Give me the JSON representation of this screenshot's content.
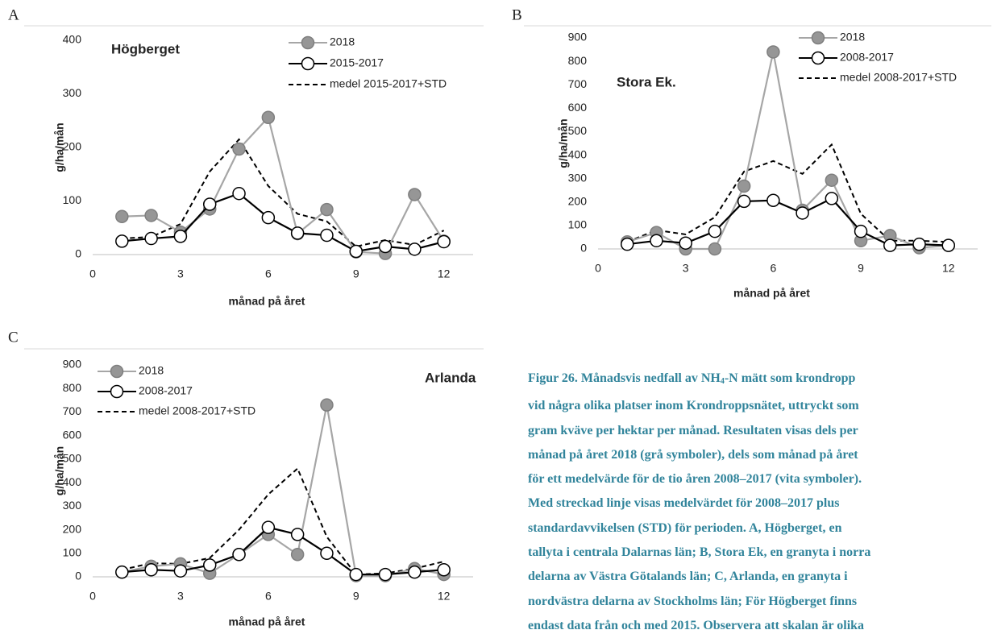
{
  "chart_data": [
    {
      "type": "line",
      "panel": "A",
      "title": "Högberget",
      "xlabel": "månad på året",
      "ylabel": "g/ha/mån",
      "x": [
        1,
        2,
        3,
        4,
        5,
        6,
        7,
        8,
        9,
        10,
        11,
        12
      ],
      "xlim": [
        0,
        13
      ],
      "xticks": [
        0,
        3,
        6,
        9,
        12
      ],
      "ylim": [
        0,
        400
      ],
      "yticks": [
        0,
        100,
        200,
        300,
        400
      ],
      "series": [
        {
          "name": "2018",
          "color": "#a6a6a6",
          "marker_fill": "#969696",
          "style": "solid",
          "values": [
            71,
            73,
            42,
            85,
            197,
            256,
            39,
            84,
            5,
            2,
            112,
            25
          ]
        },
        {
          "name": "2015-2017",
          "color": "#000000",
          "marker_fill": "#ffffff",
          "style": "solid",
          "values": [
            25,
            30,
            34,
            94,
            114,
            69,
            40,
            36,
            6,
            15,
            10,
            24
          ]
        },
        {
          "name": "medel 2015-2017+STD",
          "color": "#000000",
          "style": "dashed",
          "values": [
            30,
            33,
            57,
            155,
            215,
            128,
            76,
            62,
            15,
            27,
            18,
            45
          ]
        }
      ]
    },
    {
      "type": "line",
      "panel": "B",
      "title": "Stora Ek.",
      "xlabel": "månad på året",
      "ylabel": "g/ha/mån",
      "x": [
        1,
        2,
        3,
        4,
        5,
        6,
        7,
        8,
        9,
        10,
        11,
        12
      ],
      "xlim": [
        0,
        13
      ],
      "xticks": [
        0,
        3,
        6,
        9,
        12
      ],
      "ylim": [
        0,
        900
      ],
      "yticks": [
        0,
        100,
        200,
        300,
        400,
        500,
        600,
        700,
        800,
        900
      ],
      "series": [
        {
          "name": "2018",
          "color": "#a6a6a6",
          "marker_fill": "#969696",
          "style": "solid",
          "values": [
            30,
            70,
            0,
            0,
            268,
            840,
            165,
            293,
            35,
            57,
            5,
            15
          ]
        },
        {
          "name": "2008-2017",
          "color": "#000000",
          "marker_fill": "#ffffff",
          "style": "solid",
          "values": [
            20,
            35,
            25,
            75,
            203,
            207,
            153,
            215,
            75,
            15,
            20,
            15
          ]
        },
        {
          "name": "medel 2008-2017+STD",
          "color": "#000000",
          "style": "dashed",
          "values": [
            30,
            80,
            62,
            135,
            330,
            375,
            320,
            445,
            150,
            35,
            35,
            30
          ]
        }
      ]
    },
    {
      "type": "line",
      "panel": "C",
      "title": "Arlanda",
      "xlabel": "månad på året",
      "ylabel": "g/ha/mån",
      "x": [
        1,
        2,
        3,
        4,
        5,
        6,
        7,
        8,
        9,
        10,
        11,
        12
      ],
      "xlim": [
        0,
        13
      ],
      "xticks": [
        0,
        3,
        6,
        9,
        12
      ],
      "ylim": [
        0,
        900
      ],
      "yticks": [
        0,
        100,
        200,
        300,
        400,
        500,
        600,
        700,
        800,
        900
      ],
      "series": [
        {
          "name": "2018",
          "color": "#a6a6a6",
          "marker_fill": "#969696",
          "style": "solid",
          "values": [
            20,
            45,
            55,
            15,
            95,
            180,
            95,
            730,
            5,
            5,
            35,
            10
          ]
        },
        {
          "name": "2008-2017",
          "color": "#000000",
          "marker_fill": "#ffffff",
          "style": "solid",
          "values": [
            20,
            30,
            25,
            50,
            95,
            210,
            180,
            100,
            10,
            10,
            20,
            30
          ]
        },
        {
          "name": "medel 2008-2017+STD",
          "color": "#000000",
          "style": "dashed",
          "values": [
            30,
            58,
            55,
            80,
            200,
            350,
            460,
            170,
            10,
            15,
            35,
            65
          ]
        }
      ]
    }
  ],
  "caption": {
    "head": "Figur 26. Månadsvis nedfall av NH",
    "sub": "4",
    "lines": [
      "-N mätt som krondropp",
      "vid några olika platser inom Krondroppsnätet, uttryckt som",
      "gram kväve per hektar per månad. Resultaten visas dels per",
      "månad på året 2018 (grå symboler), dels som månad på året",
      "för ett medelvärde för de tio åren 2008–2017 (vita symboler).",
      "Med streckad linje visas medelvärdet för 2008–2017 plus",
      "standardavvikelsen (STD) för perioden. A, Högberget, en",
      "tallyta i centrala Dalarnas län; B, Stora Ek, en granyta i norra",
      "delarna av Västra Götalands län; C, Arlanda, en granyta i",
      "nordvästra delarna av Stockholms län; För Högberget finns",
      "endast data från och med 2015. Observera att skalan är olika"
    ]
  }
}
